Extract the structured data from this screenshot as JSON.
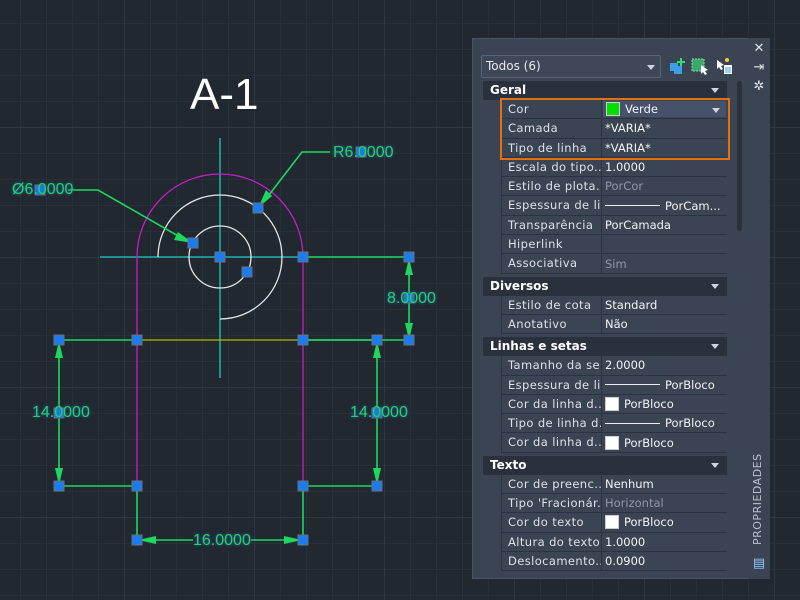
{
  "drawing": {
    "title": "A-1",
    "dimensions": {
      "diameter": "Ø6.0000",
      "radius": "R6.0000",
      "vertical_right_top": "8.0000",
      "left_height": "14.0000",
      "right_height": "14.0000",
      "bottom_width": "16.0000"
    },
    "colors": {
      "dimension": "#1ed760",
      "outline": "#c81ec8",
      "centerline": "#1ec8c8",
      "circle": "#e6e6e6",
      "yellow_line": "#b8b800",
      "grip": "#1a7cf0"
    }
  },
  "panel": {
    "selection": "Todos (6)",
    "side_label": "PROPRIEDADES",
    "toolbar_icons": [
      "quick-select-icon",
      "select-objects-icon",
      "toggle-pickadd-icon"
    ],
    "side_icons": [
      "close-icon",
      "auto-hide-icon",
      "settings-icon",
      "properties-icon"
    ],
    "sections": [
      {
        "title": "Geral",
        "rows": [
          {
            "k": "Cor",
            "v": "Verde",
            "swatch": "#00e000",
            "dropdown": true
          },
          {
            "k": "Camada",
            "v": "*VARIA*"
          },
          {
            "k": "Tipo de linha",
            "v": "*VARIA*"
          },
          {
            "k": "Escala do tipo...",
            "v": "1.0000"
          },
          {
            "k": "Estilo de plota...",
            "v": "PorCor",
            "dim": true
          },
          {
            "k": "Espessura de li...",
            "v": "PorCam...",
            "line": true
          },
          {
            "k": "Transparência",
            "v": "PorCamada"
          },
          {
            "k": "Hiperlink",
            "v": ""
          },
          {
            "k": "Associativa",
            "v": "Sim",
            "dim": true
          }
        ]
      },
      {
        "title": "Diversos",
        "rows": [
          {
            "k": "Estilo de cota",
            "v": "Standard"
          },
          {
            "k": "Anotativo",
            "v": "Não"
          }
        ]
      },
      {
        "title": "Linhas e setas",
        "rows": [
          {
            "k": "Tamanho da se...",
            "v": "2.0000"
          },
          {
            "k": "Espessura de li...",
            "v": "PorBloco",
            "line": true
          },
          {
            "k": "Cor da linha d...",
            "v": "PorBloco",
            "swatch": "#ffffff"
          },
          {
            "k": "Tipo de linha d...",
            "v": "PorBloco",
            "line": true
          },
          {
            "k": "Cor da linha d...",
            "v": "PorBloco",
            "swatch": "#ffffff"
          }
        ]
      },
      {
        "title": "Texto",
        "rows": [
          {
            "k": "Cor de preenc...",
            "v": "Nenhum"
          },
          {
            "k": "Tipo 'Fracionár...",
            "v": "Horizontal",
            "dim": true
          },
          {
            "k": "Cor do texto",
            "v": "PorBloco",
            "swatch": "#ffffff"
          },
          {
            "k": "Altura do texto",
            "v": "1.0000"
          },
          {
            "k": "Deslocamento...",
            "v": "0.0900"
          }
        ]
      }
    ],
    "highlight_color": "#e07010"
  }
}
